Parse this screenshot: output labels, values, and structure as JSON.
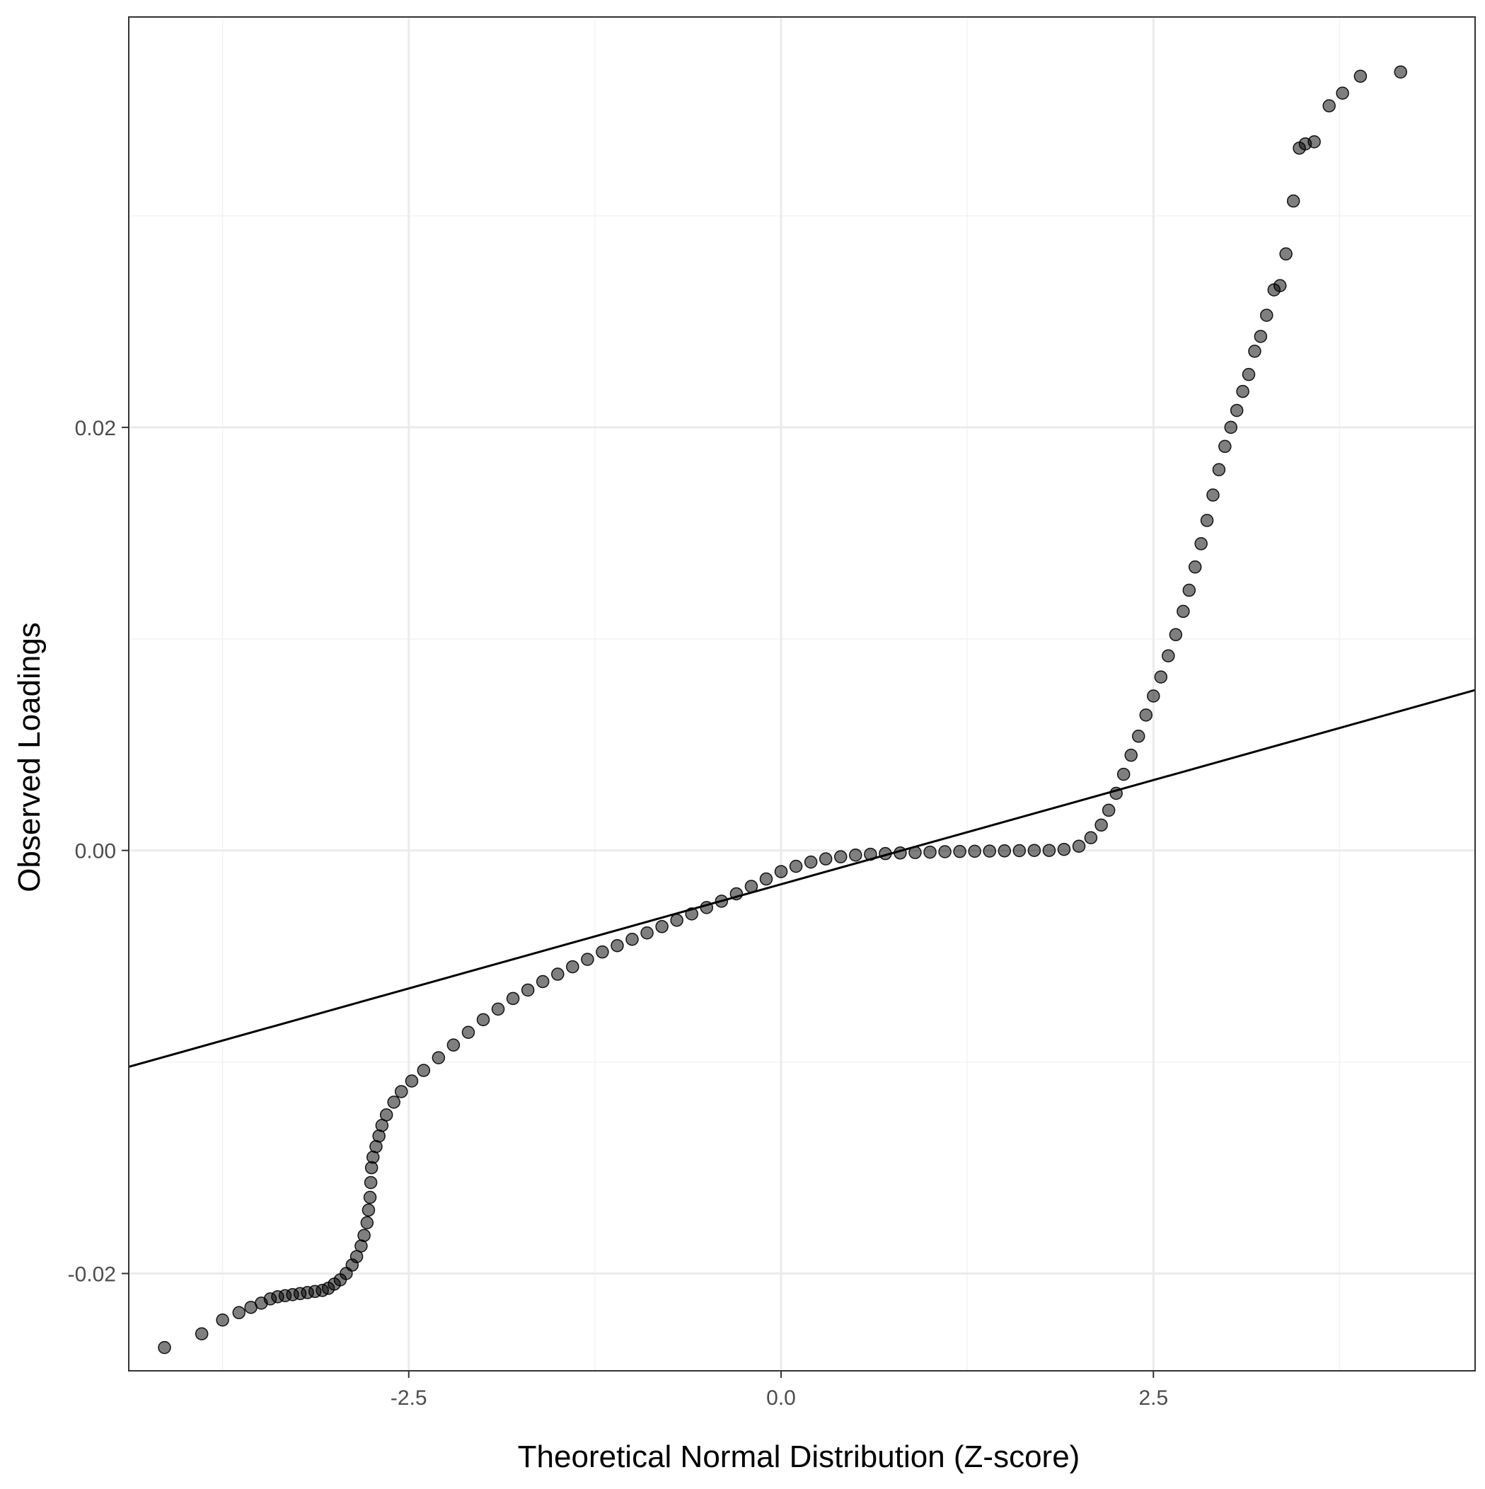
{
  "chart_data": {
    "type": "scatter",
    "title": "",
    "xlabel": "Theoretical Normal Distribution (Z-score)",
    "ylabel": "Observed Loadings",
    "xlim": [
      -4.38,
      4.66
    ],
    "ylim": [
      -0.0246,
      0.0394
    ],
    "x_ticks": [
      {
        "value": -2.5,
        "label": "-2.5"
      },
      {
        "value": 0.0,
        "label": "0.0"
      },
      {
        "value": 2.5,
        "label": "2.5"
      }
    ],
    "y_ticks": [
      {
        "value": -0.02,
        "label": "-0.02"
      },
      {
        "value": 0.0,
        "label": "0.00"
      },
      {
        "value": 0.02,
        "label": "0.02"
      }
    ],
    "x_minor_grid": [
      -3.75,
      -1.25,
      1.25,
      3.75
    ],
    "y_minor_grid": [
      -0.01,
      0.01,
      0.03
    ],
    "grid": true,
    "legend": "none",
    "colors": {
      "points": "#000000",
      "point_opacity": 0.5,
      "reference_line": "#000000",
      "grid_major": "#ebebeb",
      "grid_minor": "#f3f3f3",
      "panel_border": "#333333",
      "tick_label": "#4d4d4d"
    },
    "reference_line": {
      "intercept": -0.0016,
      "slope": 0.00197
    },
    "series": [
      {
        "points": [
          [
            -4.14,
            -0.0235
          ],
          [
            -3.89,
            -0.02285
          ],
          [
            -3.75,
            -0.0222
          ],
          [
            -3.64,
            -0.02185
          ],
          [
            -3.56,
            -0.0216
          ],
          [
            -3.49,
            -0.0214
          ],
          [
            -3.43,
            -0.0212
          ],
          [
            -3.38,
            -0.0211
          ],
          [
            -3.33,
            -0.02105
          ],
          [
            -3.28,
            -0.021
          ],
          [
            -3.23,
            -0.02095
          ],
          [
            -3.18,
            -0.0209
          ],
          [
            -3.13,
            -0.02085
          ],
          [
            -3.08,
            -0.0208
          ],
          [
            -3.04,
            -0.0207
          ],
          [
            -3.0,
            -0.0205
          ],
          [
            -2.96,
            -0.0203
          ],
          [
            -2.92,
            -0.02
          ],
          [
            -2.88,
            -0.0196
          ],
          [
            -2.85,
            -0.0192
          ],
          [
            -2.82,
            -0.0187
          ],
          [
            -2.8,
            -0.0182
          ],
          [
            -2.78,
            -0.0176
          ],
          [
            -2.77,
            -0.017
          ],
          [
            -2.76,
            -0.0164
          ],
          [
            -2.755,
            -0.0157
          ],
          [
            -2.75,
            -0.015
          ],
          [
            -2.74,
            -0.0145
          ],
          [
            -2.72,
            -0.014
          ],
          [
            -2.7,
            -0.0135
          ],
          [
            -2.68,
            -0.013
          ],
          [
            -2.65,
            -0.0125
          ],
          [
            -2.6,
            -0.0119
          ],
          [
            -2.55,
            -0.0114
          ],
          [
            -2.48,
            -0.0109
          ],
          [
            -2.4,
            -0.0104
          ],
          [
            -2.3,
            -0.0098
          ],
          [
            -2.2,
            -0.0092
          ],
          [
            -2.1,
            -0.0086
          ],
          [
            -2.0,
            -0.008
          ],
          [
            -1.9,
            -0.0075
          ],
          [
            -1.8,
            -0.007
          ],
          [
            -1.7,
            -0.0066
          ],
          [
            -1.6,
            -0.0062
          ],
          [
            -1.5,
            -0.00585
          ],
          [
            -1.4,
            -0.0055
          ],
          [
            -1.3,
            -0.00515
          ],
          [
            -1.2,
            -0.0048
          ],
          [
            -1.1,
            -0.0045
          ],
          [
            -1.0,
            -0.0042
          ],
          [
            -0.9,
            -0.0039
          ],
          [
            -0.8,
            -0.0036
          ],
          [
            -0.7,
            -0.0033
          ],
          [
            -0.6,
            -0.003
          ],
          [
            -0.5,
            -0.0027
          ],
          [
            -0.4,
            -0.0024
          ],
          [
            -0.3,
            -0.00205
          ],
          [
            -0.2,
            -0.0017
          ],
          [
            -0.1,
            -0.00135
          ],
          [
            0.0,
            -0.001
          ],
          [
            0.1,
            -0.00075
          ],
          [
            0.2,
            -0.00055
          ],
          [
            0.3,
            -0.0004
          ],
          [
            0.4,
            -0.0003
          ],
          [
            0.5,
            -0.00022
          ],
          [
            0.6,
            -0.00018
          ],
          [
            0.7,
            -0.00015
          ],
          [
            0.8,
            -0.00012
          ],
          [
            0.9,
            -0.0001
          ],
          [
            1.0,
            -8e-05
          ],
          [
            1.1,
            -6e-05
          ],
          [
            1.2,
            -5e-05
          ],
          [
            1.3,
            -4e-05
          ],
          [
            1.4,
            -3e-05
          ],
          [
            1.5,
            -2e-05
          ],
          [
            1.6,
            -1e-05
          ],
          [
            1.7,
            0.0
          ],
          [
            1.8,
            0.0
          ],
          [
            1.9,
            5e-05
          ],
          [
            2.0,
            0.0002
          ],
          [
            2.08,
            0.0006
          ],
          [
            2.15,
            0.0012
          ],
          [
            2.2,
            0.0019
          ],
          [
            2.25,
            0.0027
          ],
          [
            2.3,
            0.0036
          ],
          [
            2.35,
            0.0045
          ],
          [
            2.4,
            0.0054
          ],
          [
            2.45,
            0.0064
          ],
          [
            2.5,
            0.0073
          ],
          [
            2.55,
            0.0082
          ],
          [
            2.6,
            0.0092
          ],
          [
            2.65,
            0.0102
          ],
          [
            2.7,
            0.0113
          ],
          [
            2.74,
            0.0123
          ],
          [
            2.78,
            0.0134
          ],
          [
            2.82,
            0.0145
          ],
          [
            2.86,
            0.0156
          ],
          [
            2.9,
            0.0168
          ],
          [
            2.94,
            0.018
          ],
          [
            2.98,
            0.0191
          ],
          [
            3.02,
            0.02
          ],
          [
            3.06,
            0.0208
          ],
          [
            3.1,
            0.0217
          ],
          [
            3.14,
            0.0225
          ],
          [
            3.18,
            0.0236
          ],
          [
            3.22,
            0.0243
          ],
          [
            3.26,
            0.0253
          ],
          [
            3.31,
            0.0265
          ],
          [
            3.35,
            0.0267
          ],
          [
            3.39,
            0.0282
          ],
          [
            3.44,
            0.0307
          ],
          [
            3.48,
            0.0332
          ],
          [
            3.52,
            0.0334
          ],
          [
            3.58,
            0.0335
          ],
          [
            3.68,
            0.0352
          ],
          [
            3.77,
            0.0358
          ],
          [
            3.89,
            0.0366
          ],
          [
            4.16,
            0.0368
          ]
        ]
      }
    ]
  }
}
